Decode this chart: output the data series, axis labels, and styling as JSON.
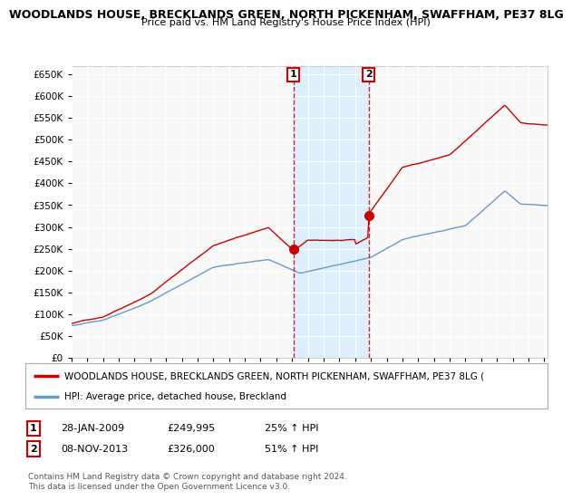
{
  "title": "WOODLANDS HOUSE, BRECKLANDS GREEN, NORTH PICKENHAM, SWAFFHAM, PE37 8LG",
  "subtitle": "Price paid vs. HM Land Registry's House Price Index (HPI)",
  "yticks": [
    0,
    50000,
    100000,
    150000,
    200000,
    250000,
    300000,
    350000,
    400000,
    450000,
    500000,
    550000,
    600000,
    650000
  ],
  "ylim": [
    0,
    670000
  ],
  "xlim_start": 1995.0,
  "xlim_end": 2025.2,
  "transaction1": {
    "label": "1",
    "date": "28-JAN-2009",
    "price": 249995,
    "pct": "25%",
    "x": 2009.08
  },
  "transaction2": {
    "label": "2",
    "date": "08-NOV-2013",
    "price": 326000,
    "pct": "51%",
    "x": 2013.85
  },
  "legend_property": "WOODLANDS HOUSE, BRECKLANDS GREEN, NORTH PICKENHAM, SWAFFHAM, PE37 8LG (",
  "legend_hpi": "HPI: Average price, detached house, Breckland",
  "footer1": "Contains HM Land Registry data © Crown copyright and database right 2024.",
  "footer2": "This data is licensed under the Open Government Licence v3.0.",
  "red_color": "#cc0000",
  "blue_color": "#6699cc",
  "shade_color": "#ddeeff",
  "background_chart": "#f0f0f0",
  "background_fig": "#ffffff"
}
